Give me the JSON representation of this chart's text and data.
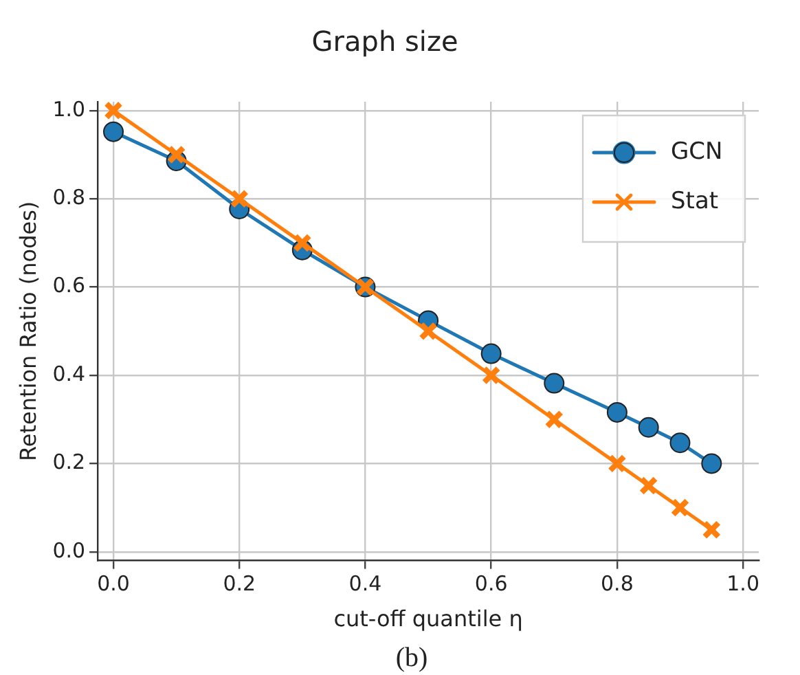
{
  "chart_data": {
    "type": "line",
    "title": "Graph size",
    "xlabel": "cut-off quantile η",
    "ylabel": "Retention Ratio (nodes)",
    "annotations": [
      "(b)"
    ],
    "x": [
      0,
      0.1,
      0.2,
      0.3,
      0.4,
      0.5,
      0.6,
      0.7,
      0.8,
      0.85,
      0.9,
      0.95
    ],
    "series": [
      {
        "name": "GCN",
        "color": "#1f77b4",
        "marker": "circle",
        "values": [
          0.952,
          0.886,
          0.777,
          0.684,
          0.6,
          0.524,
          0.449,
          0.382,
          0.316,
          0.282,
          0.247,
          0.2
        ]
      },
      {
        "name": "Stat",
        "color": "#ff7f0e",
        "marker": "cross",
        "values": [
          1.0,
          0.9,
          0.8,
          0.7,
          0.6,
          0.5,
          0.4,
          0.3,
          0.2,
          0.15,
          0.1,
          0.05
        ]
      }
    ],
    "xlim": [
      -0.025,
      1.025
    ],
    "xticks": [
      {
        "value": 0,
        "label": "0.0"
      },
      0.2,
      0.4,
      0.6,
      0.8,
      {
        "value": 1,
        "label": "1.0"
      }
    ],
    "ylim": [
      -0.02,
      1.02
    ],
    "yticks": [
      {
        "value": 0,
        "label": "0.0"
      },
      0.2,
      0.4,
      0.6,
      0.8,
      {
        "value": 1,
        "label": "1.0"
      }
    ],
    "grid": true,
    "legend": "top right"
  }
}
